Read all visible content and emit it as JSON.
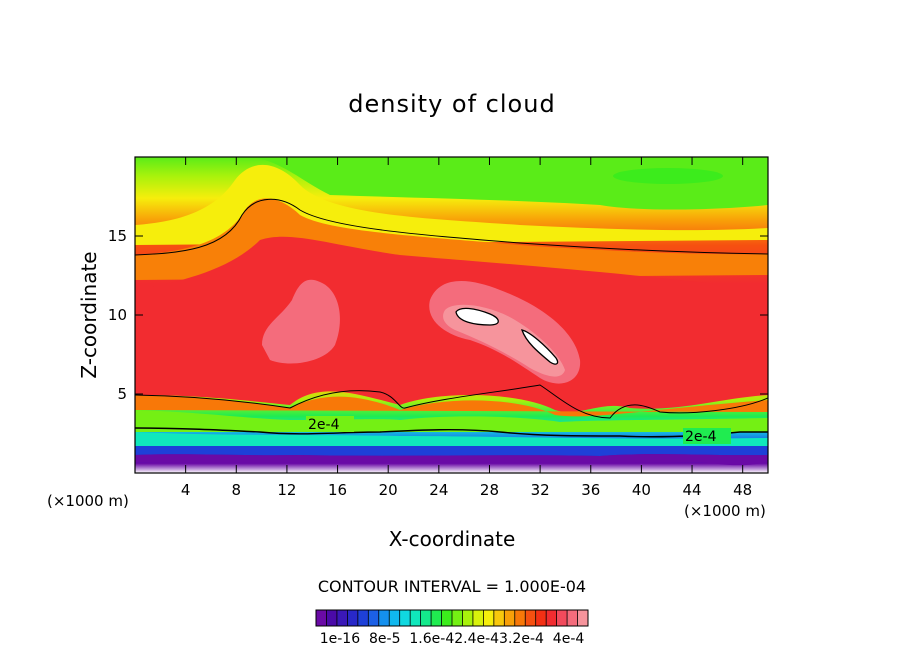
{
  "chart_data": {
    "type": "heatmap",
    "subtype": "filled-contour",
    "title": "density of cloud",
    "xlabel": "X-coordinate",
    "ylabel": "Z-coordinate",
    "x_unit_left": "(×1000 m)",
    "x_unit_right": "(×1000 m)",
    "x_ticks": [
      4,
      8,
      12,
      16,
      20,
      24,
      28,
      32,
      36,
      40,
      44,
      48
    ],
    "y_ticks": [
      5,
      10,
      15
    ],
    "xlim": [
      0,
      50
    ],
    "ylim": [
      0,
      20
    ],
    "grid": false,
    "contour_line_labels": [
      "2e-4",
      "2e-4"
    ],
    "contour_interval_text": "CONTOUR INTERVAL = 1.000E-04",
    "colorbar": {
      "labels": [
        "1e-16",
        "8e-5",
        "1.6e-4",
        "2.4e-4",
        "3.2e-4",
        "4e-4"
      ],
      "label_text": "1e-16  8e-5  1.6e-42.4e-43.2e-4  4e-4",
      "min": 1e-16,
      "max": 0.0004,
      "colors": [
        "#6a0aa6",
        "#4a0aa8",
        "#3a18b8",
        "#2828c8",
        "#1e40d8",
        "#1c60e6",
        "#1490ee",
        "#10b8ee",
        "#10d8e0",
        "#10e8bc",
        "#14ea8c",
        "#20ec50",
        "#3cec1c",
        "#74f014",
        "#a8f20c",
        "#d8f20c",
        "#f6ee0c",
        "#f8c80c",
        "#f8a008",
        "#f87808",
        "#f65010",
        "#f43014",
        "#f22c30",
        "#f24a5c",
        "#f46c7c",
        "#f6949c"
      ]
    },
    "regions": [
      {
        "name": "boundary-purple",
        "z_range": [
          0.5,
          1.2
        ],
        "value": 1e-16
      },
      {
        "name": "lower-cyan-green",
        "z_range": [
          1.2,
          3.0
        ],
        "value": 0.00012
      },
      {
        "name": "yellow-orange-band",
        "z_range": [
          3.0,
          5.0
        ],
        "value": 0.00022
      },
      {
        "name": "red-core",
        "z_range": [
          5.0,
          13.0
        ],
        "value": 0.00034
      },
      {
        "name": "pink-maxima",
        "centers_x": [
          12,
          27,
          31
        ],
        "value": 0.00038
      },
      {
        "name": "upper-orange-yellow",
        "z_range": [
          13.0,
          17.0
        ],
        "value": 0.00024
      },
      {
        "name": "top-green",
        "z_range": [
          17.0,
          20.0
        ],
        "value": 0.0001
      }
    ]
  },
  "colors": {
    "background": "#ffffff",
    "frame": "#000000",
    "contour_line": "#000000"
  }
}
